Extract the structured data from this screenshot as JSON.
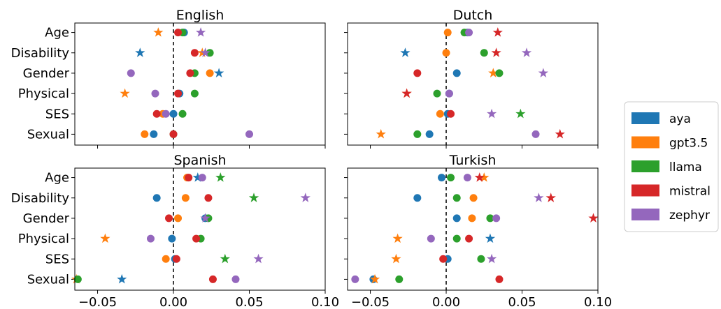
{
  "chart_data": {
    "type": "scatter",
    "xlim": [
      -0.065,
      0.1
    ],
    "x_ticks": [
      -0.05,
      0.0,
      0.05,
      0.1
    ],
    "x_tick_labels": [
      "−0.05",
      "0.00",
      "0.05",
      "0.10"
    ],
    "categories": [
      "Age",
      "Disability",
      "Gender",
      "Physical",
      "SES",
      "Sexual"
    ],
    "reference_line_x": 0,
    "legend": {
      "position": "right"
    },
    "series": [
      {
        "name": "aya",
        "color": "#1f77b4"
      },
      {
        "name": "gpt3.5",
        "color": "#ff7f0e"
      },
      {
        "name": "llama",
        "color": "#2ca02c"
      },
      {
        "name": "mistral",
        "color": "#d62728"
      },
      {
        "name": "zephyr",
        "color": "#9467bd"
      }
    ],
    "panels": [
      {
        "title": "English",
        "points": {
          "aya": [
            [
              0.007,
              "o"
            ],
            [
              -0.022,
              "*"
            ],
            [
              0.03,
              "*"
            ],
            [
              0.004,
              "o"
            ],
            [
              0.0,
              "o"
            ],
            [
              -0.013,
              "o"
            ]
          ],
          "gpt3.5": [
            [
              -0.01,
              "*"
            ],
            [
              0.019,
              "*"
            ],
            [
              0.024,
              "o"
            ],
            [
              -0.032,
              "*"
            ],
            [
              -0.007,
              "o"
            ],
            [
              -0.019,
              "o"
            ]
          ],
          "llama": [
            [
              0.006,
              "o"
            ],
            [
              0.024,
              "o"
            ],
            [
              0.014,
              "o"
            ],
            [
              0.014,
              "o"
            ],
            [
              0.006,
              "o"
            ],
            [
              0.0,
              "o"
            ]
          ],
          "mistral": [
            [
              0.003,
              "o"
            ],
            [
              0.014,
              "o"
            ],
            [
              0.011,
              "o"
            ],
            [
              0.003,
              "o"
            ],
            [
              -0.011,
              "o"
            ],
            [
              0.0,
              "o"
            ]
          ],
          "zephyr": [
            [
              0.018,
              "*"
            ],
            [
              0.021,
              "*"
            ],
            [
              -0.028,
              "o"
            ],
            [
              -0.012,
              "o"
            ],
            [
              -0.005,
              "o"
            ],
            [
              0.05,
              "o"
            ]
          ]
        }
      },
      {
        "title": "Dutch",
        "points": {
          "aya": [
            [
              0.014,
              "o"
            ],
            [
              -0.027,
              "*"
            ],
            [
              0.007,
              "o"
            ],
            [
              0.002,
              "o"
            ],
            [
              0.001,
              "o"
            ],
            [
              -0.011,
              "o"
            ]
          ],
          "gpt3.5": [
            [
              0.001,
              "o"
            ],
            [
              0.0,
              "o"
            ],
            [
              0.031,
              "*"
            ],
            [
              -0.026,
              "*"
            ],
            [
              -0.004,
              "o"
            ],
            [
              -0.043,
              "*"
            ]
          ],
          "llama": [
            [
              0.012,
              "o"
            ],
            [
              0.025,
              "o"
            ],
            [
              0.035,
              "o"
            ],
            [
              -0.006,
              "o"
            ],
            [
              0.049,
              "*"
            ],
            [
              -0.019,
              "o"
            ]
          ],
          "mistral": [
            [
              0.034,
              "*"
            ],
            [
              0.033,
              "*"
            ],
            [
              -0.019,
              "o"
            ],
            [
              -0.026,
              "*"
            ],
            [
              0.003,
              "o"
            ],
            [
              0.075,
              "*"
            ]
          ],
          "zephyr": [
            [
              0.015,
              "o"
            ],
            [
              0.053,
              "*"
            ],
            [
              0.064,
              "*"
            ],
            [
              0.002,
              "o"
            ],
            [
              0.03,
              "*"
            ],
            [
              0.059,
              "o"
            ]
          ]
        }
      },
      {
        "title": "Spanish",
        "points": {
          "aya": [
            [
              0.016,
              "*"
            ],
            [
              -0.011,
              "o"
            ],
            [
              0.021,
              "o"
            ],
            [
              -0.001,
              "o"
            ],
            [
              0.001,
              "o"
            ],
            [
              -0.034,
              "*"
            ]
          ],
          "gpt3.5": [
            [
              0.009,
              "o"
            ],
            [
              0.008,
              "o"
            ],
            [
              0.003,
              "o"
            ],
            [
              -0.045,
              "*"
            ],
            [
              -0.005,
              "o"
            ],
            [
              -0.064,
              "*"
            ]
          ],
          "llama": [
            [
              0.031,
              "*"
            ],
            [
              0.053,
              "*"
            ],
            [
              0.023,
              "o"
            ],
            [
              0.018,
              "o"
            ],
            [
              0.034,
              "*"
            ],
            [
              -0.063,
              "o"
            ]
          ],
          "mistral": [
            [
              0.01,
              "o"
            ],
            [
              0.023,
              "o"
            ],
            [
              -0.003,
              "o"
            ],
            [
              0.015,
              "o"
            ],
            [
              0.002,
              "o"
            ],
            [
              0.026,
              "o"
            ]
          ],
          "zephyr": [
            [
              0.019,
              "o"
            ],
            [
              0.087,
              "*"
            ],
            [
              0.021,
              "*"
            ],
            [
              -0.015,
              "o"
            ],
            [
              0.056,
              "*"
            ],
            [
              0.041,
              "o"
            ]
          ]
        }
      },
      {
        "title": "Turkish",
        "points": {
          "aya": [
            [
              -0.003,
              "o"
            ],
            [
              -0.019,
              "o"
            ],
            [
              0.007,
              "o"
            ],
            [
              0.029,
              "*"
            ],
            [
              0.001,
              "o"
            ],
            [
              -0.048,
              "o"
            ]
          ],
          "gpt3.5": [
            [
              0.025,
              "*"
            ],
            [
              0.018,
              "o"
            ],
            [
              0.017,
              "o"
            ],
            [
              -0.032,
              "*"
            ],
            [
              -0.033,
              "*"
            ],
            [
              -0.047,
              "*"
            ]
          ],
          "llama": [
            [
              0.003,
              "o"
            ],
            [
              0.007,
              "o"
            ],
            [
              0.029,
              "o"
            ],
            [
              0.007,
              "o"
            ],
            [
              0.023,
              "o"
            ],
            [
              -0.031,
              "o"
            ]
          ],
          "mistral": [
            [
              0.022,
              "*"
            ],
            [
              0.069,
              "*"
            ],
            [
              0.097,
              "*"
            ],
            [
              0.015,
              "o"
            ],
            [
              -0.002,
              "o"
            ],
            [
              0.035,
              "o"
            ]
          ],
          "zephyr": [
            [
              0.014,
              "o"
            ],
            [
              0.061,
              "*"
            ],
            [
              0.033,
              "o"
            ],
            [
              -0.01,
              "o"
            ],
            [
              0.03,
              "*"
            ],
            [
              -0.06,
              "o"
            ]
          ]
        }
      }
    ]
  }
}
